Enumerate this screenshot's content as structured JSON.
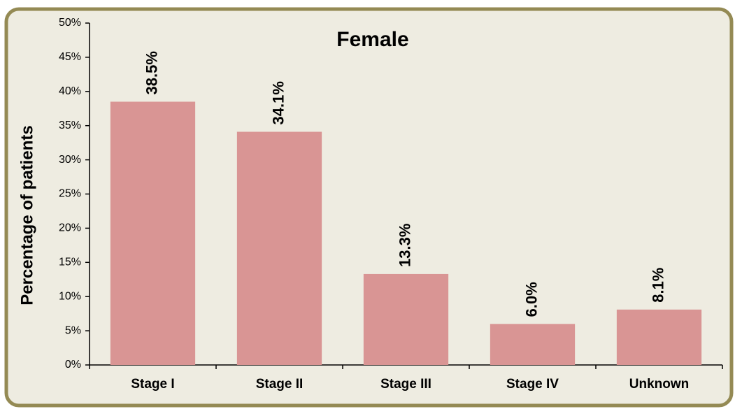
{
  "chart_data": {
    "type": "bar",
    "title": "Female",
    "y_label": "Percentage of patients",
    "categories": [
      "Stage I",
      "Stage II",
      "Stage III",
      "Stage IV",
      "Unknown"
    ],
    "values": [
      38.5,
      34.1,
      13.3,
      6.0,
      8.1
    ],
    "value_labels": [
      "38.5%",
      "34.1%",
      "13.3%",
      "6.0%",
      "8.1%"
    ],
    "color": "#d99594",
    "ylim": [
      0,
      50
    ],
    "yticks": [
      {
        "value": 0,
        "label": "0%"
      },
      {
        "value": 5,
        "label": "5%"
      },
      {
        "value": 10,
        "label": "10%"
      },
      {
        "value": 15,
        "label": "15%"
      },
      {
        "value": 20,
        "label": "20%"
      },
      {
        "value": 25,
        "label": "25%"
      },
      {
        "value": 30,
        "label": "30%"
      },
      {
        "value": 35,
        "label": "35%"
      },
      {
        "value": 40,
        "label": "40%"
      },
      {
        "value": 45,
        "label": "45%"
      },
      {
        "value": 50,
        "label": "50%"
      }
    ],
    "grid": false
  }
}
